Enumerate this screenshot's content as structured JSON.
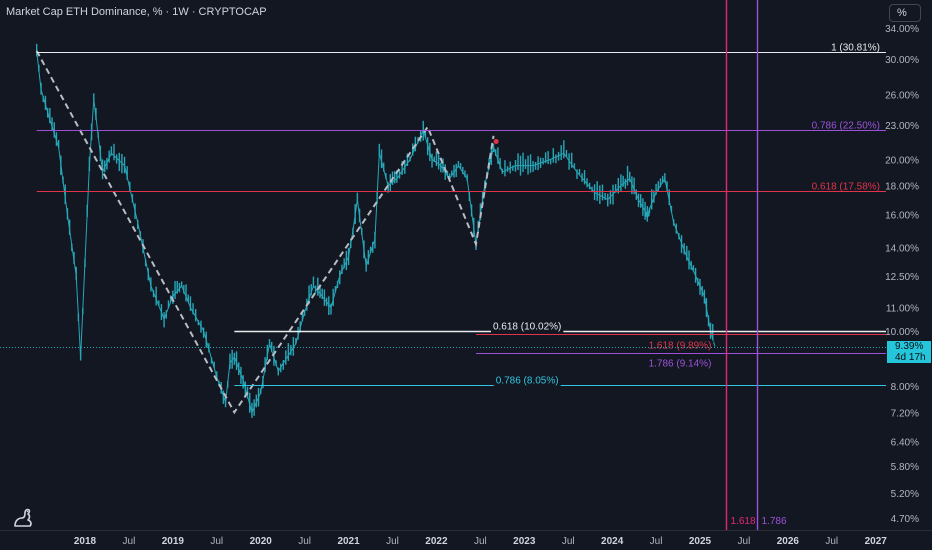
{
  "header": {
    "title": "Market Cap ETH Dominance, % · 1W · CRYPTOCAP",
    "scale_button": "%"
  },
  "price_badge": {
    "value": "9.39%",
    "countdown": "4d 17h"
  },
  "colors": {
    "background": "#131722",
    "candle": "#26a7b8",
    "white_line": "#e8eaed",
    "purple_line": "#9b52d8",
    "red_line": "#e0344a",
    "cyan_line": "#30c5e0",
    "pink_vline": "#e3287a",
    "dashed": "#b8bcc4"
  },
  "chart_data": {
    "type": "line",
    "title": "Market Cap ETH Dominance, % · 1W · CRYPTOCAP",
    "y_scale": "log",
    "y_ticks": [
      "34.00%",
      "30.00%",
      "26.00%",
      "23.00%",
      "20.00%",
      "18.00%",
      "16.00%",
      "14.00%",
      "12.50%",
      "11.00%",
      "10.00%",
      "8.00%",
      "7.20%",
      "6.40%",
      "5.80%",
      "5.20%",
      "4.70%"
    ],
    "y_tick_values": [
      34,
      30,
      26,
      23,
      20,
      18,
      16,
      14,
      12.5,
      11,
      10,
      8,
      7.2,
      6.4,
      5.8,
      5.2,
      4.7
    ],
    "x_ticks": [
      "2018",
      "Jul",
      "2019",
      "Jul",
      "2020",
      "Jul",
      "2021",
      "Jul",
      "2022",
      "Jul",
      "2023",
      "Jul",
      "2024",
      "Jul",
      "2025",
      "Jul",
      "2026",
      "Jul",
      "2027"
    ],
    "x_tick_years": [
      2018.0,
      2018.5,
      2019.0,
      2019.5,
      2020.0,
      2020.5,
      2021.0,
      2021.5,
      2022.0,
      2022.5,
      2023.0,
      2023.5,
      2024.0,
      2024.5,
      2025.0,
      2025.5,
      2026.0,
      2026.5,
      2027.0
    ],
    "series": [
      {
        "values": [
          [
            2017.45,
            31.0
          ],
          [
            2017.5,
            26.5
          ],
          [
            2017.6,
            23.5
          ],
          [
            2017.7,
            21.0
          ],
          [
            2017.8,
            16.0
          ],
          [
            2017.9,
            12.5
          ],
          [
            2017.95,
            9.0
          ],
          [
            2018.05,
            19.5
          ],
          [
            2018.1,
            25.5
          ],
          [
            2018.2,
            19.0
          ],
          [
            2018.3,
            20.5
          ],
          [
            2018.45,
            19.5
          ],
          [
            2018.6,
            15.5
          ],
          [
            2018.75,
            12.0
          ],
          [
            2018.9,
            10.5
          ],
          [
            2019.0,
            11.5
          ],
          [
            2019.1,
            12.0
          ],
          [
            2019.2,
            11.0
          ],
          [
            2019.35,
            10.0
          ],
          [
            2019.5,
            8.3
          ],
          [
            2019.6,
            7.5
          ],
          [
            2019.65,
            8.8
          ],
          [
            2019.7,
            9.0
          ],
          [
            2019.8,
            8.2
          ],
          [
            2019.9,
            7.2
          ],
          [
            2020.0,
            7.8
          ],
          [
            2020.1,
            9.5
          ],
          [
            2020.2,
            8.5
          ],
          [
            2020.4,
            9.5
          ],
          [
            2020.5,
            10.8
          ],
          [
            2020.6,
            12.0
          ],
          [
            2020.7,
            11.5
          ],
          [
            2020.8,
            11.0
          ],
          [
            2020.9,
            12.5
          ],
          [
            2021.0,
            13.5
          ],
          [
            2021.05,
            15.0
          ],
          [
            2021.1,
            17.0
          ],
          [
            2021.2,
            13.0
          ],
          [
            2021.3,
            14.5
          ],
          [
            2021.35,
            20.5
          ],
          [
            2021.45,
            18.0
          ],
          [
            2021.55,
            18.5
          ],
          [
            2021.7,
            20.0
          ],
          [
            2021.85,
            22.5
          ],
          [
            2021.95,
            20.0
          ],
          [
            2022.05,
            19.5
          ],
          [
            2022.15,
            18.5
          ],
          [
            2022.25,
            19.5
          ],
          [
            2022.35,
            18.5
          ],
          [
            2022.45,
            14.2
          ],
          [
            2022.55,
            18.0
          ],
          [
            2022.65,
            21.0
          ],
          [
            2022.75,
            19.0
          ],
          [
            2022.9,
            19.5
          ],
          [
            2023.1,
            19.5
          ],
          [
            2023.3,
            20.0
          ],
          [
            2023.45,
            20.5
          ],
          [
            2023.6,
            19.0
          ],
          [
            2023.8,
            17.5
          ],
          [
            2023.95,
            17.0
          ],
          [
            2024.1,
            18.0
          ],
          [
            2024.2,
            18.5
          ],
          [
            2024.3,
            17.0
          ],
          [
            2024.4,
            16.0
          ],
          [
            2024.5,
            17.5
          ],
          [
            2024.6,
            18.5
          ],
          [
            2024.7,
            15.5
          ],
          [
            2024.85,
            13.5
          ],
          [
            2024.95,
            12.5
          ],
          [
            2025.05,
            11.5
          ],
          [
            2025.12,
            10.0
          ],
          [
            2025.17,
            9.39
          ]
        ]
      }
    ],
    "dashed_zigzag": [
      [
        2017.45,
        31.0
      ],
      [
        2019.7,
        7.2
      ],
      [
        2021.9,
        22.8
      ],
      [
        2022.45,
        14.2
      ],
      [
        2022.65,
        22.0
      ]
    ],
    "horizontal_levels": [
      {
        "label": "1 (30.81%)",
        "value": 30.81,
        "color": "white",
        "x_start": 2017.45
      },
      {
        "label": "0.786 (22.50%)",
        "value": 22.5,
        "color": "purple",
        "x_start": 2017.45
      },
      {
        "label": "0.618 (17.58%)",
        "value": 17.58,
        "color": "red",
        "x_start": 2017.45
      },
      {
        "label": "0.618 (10.02%)",
        "value": 10.02,
        "color": "white",
        "x_start": 2019.7
      },
      {
        "label": "1.618 (9.89%)",
        "value": 9.89,
        "color": "red",
        "x_start": 2022.45
      },
      {
        "label": "1.786 (9.14%)",
        "value": 9.14,
        "color": "purple",
        "x_start": 2022.45
      },
      {
        "label": "0.786 (8.05%)",
        "value": 8.05,
        "color": "cyan",
        "x_start": 2019.7
      }
    ],
    "vertical_levels": [
      {
        "label": "1.618",
        "x": 2025.3,
        "color": "pink"
      },
      {
        "label": "1.786",
        "x": 2025.65,
        "color": "purple"
      }
    ],
    "markers": [
      {
        "x": 2022.68,
        "y": 21.5,
        "color": "red"
      },
      {
        "x": 2024.4,
        "y": 16.0,
        "color": "cyan"
      }
    ],
    "current_value": 9.39,
    "grid": false,
    "legend": "none"
  }
}
